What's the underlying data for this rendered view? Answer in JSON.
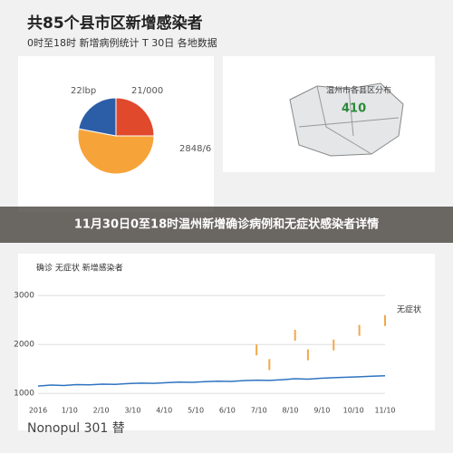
{
  "header": {
    "title": "共85个县市区新增感染者",
    "subtitle": "0时至18时 新增病例统计 T 30日 各地数据"
  },
  "pie": {
    "label_top_left": "22lbp",
    "label_top_right": "21/000",
    "label_right": "2848/6",
    "values": [
      25,
      53,
      22
    ],
    "colors": [
      "#e0492c",
      "#f6a43a",
      "#2c5ea8"
    ]
  },
  "map": {
    "caption": "温州市各县区分布",
    "value": "410"
  },
  "banner": {
    "title": "11月30日0至18时温州新增确诊病例和无症状感染者详情"
  },
  "line_chart": {
    "legend": "确诊 无症状 新增感染者",
    "right_label": "无症状",
    "ylim": [
      800,
      3300
    ],
    "yticks": [
      1000,
      2000,
      3000
    ],
    "xticks": [
      "2016",
      "1/10",
      "2/10",
      "3/10",
      "4/10",
      "5/10",
      "6/10",
      "7/10",
      "8/10",
      "9/10",
      "10/10",
      "11/10"
    ],
    "series": [
      {
        "name": "确诊",
        "color": "#2f74c0",
        "values": [
          1150,
          1170,
          1160,
          1180,
          1175,
          1190,
          1185,
          1200,
          1210,
          1205,
          1220,
          1230,
          1225,
          1240,
          1250,
          1245,
          1260,
          1270,
          1265,
          1280,
          1300,
          1290,
          1310,
          1320,
          1330,
          1340,
          1350,
          1360
        ]
      },
      {
        "name": "无症状",
        "color": "#f1a84a",
        "values": [
          null,
          null,
          null,
          null,
          null,
          null,
          null,
          null,
          null,
          null,
          null,
          null,
          null,
          null,
          null,
          null,
          null,
          2000,
          1700,
          null,
          2300,
          1900,
          null,
          2100,
          null,
          2400,
          null,
          2600
        ]
      }
    ]
  },
  "footer": {
    "text": "Nonopul 301 替"
  }
}
